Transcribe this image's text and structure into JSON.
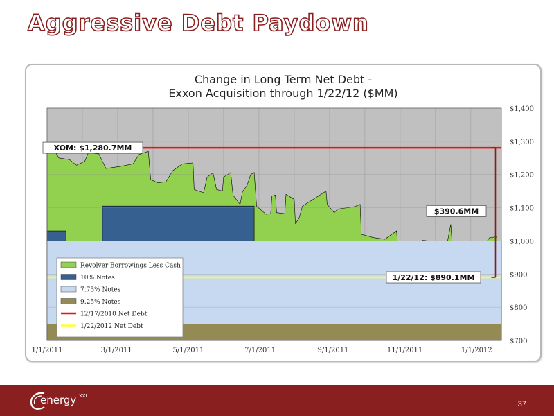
{
  "slide": {
    "title": "Aggressive Debt Paydown",
    "page_number": "37",
    "logo_text": "energy",
    "logo_superscript": "XXI"
  },
  "chart_data": {
    "type": "area",
    "title": [
      "Change in Long Term Net Debt -",
      "Exxon Acquisition through 1/22/12 ($MM)"
    ],
    "x_range": [
      "2011-01-01",
      "2012-01-22"
    ],
    "x_ticks": [
      {
        "date": "2011-01-01",
        "label": "1/1/2011"
      },
      {
        "date": "2011-03-01",
        "label": "3/1/2011"
      },
      {
        "date": "2011-05-01",
        "label": "5/1/2011"
      },
      {
        "date": "2011-07-01",
        "label": "7/1/2011"
      },
      {
        "date": "2011-09-01",
        "label": "9/1/2011"
      },
      {
        "date": "2011-11-01",
        "label": "11/1/2011"
      },
      {
        "date": "2012-01-01",
        "label": "1/1/2012"
      }
    ],
    "y_range": [
      700,
      1400
    ],
    "y_ticks": [
      {
        "value": 700,
        "label": "$700"
      },
      {
        "value": 800,
        "label": "$800"
      },
      {
        "value": 900,
        "label": "$900"
      },
      {
        "value": 1000,
        "label": "$1,000"
      },
      {
        "value": 1100,
        "label": "$1,100"
      },
      {
        "value": 1200,
        "label": "$1,200"
      },
      {
        "value": 1300,
        "label": "$1,300"
      },
      {
        "value": 1400,
        "label": "$1,400"
      }
    ],
    "grid": true,
    "legend_position": "bottom-left",
    "colors": {
      "plot_background": "#c0c0c0",
      "revolver": "#92d050",
      "notes_10": "#35608f",
      "notes_775": "#c6d9f1",
      "notes_925": "#948a54",
      "line_2010": "#ee1111",
      "line_2012": "#ffff33"
    },
    "series": [
      {
        "name": "9.25% Notes",
        "points": [
          [
            "2011-01-01",
            750
          ],
          [
            "2012-01-22",
            750
          ]
        ]
      },
      {
        "name": "7.75% Notes",
        "points": [
          [
            "2011-01-01",
            1000
          ],
          [
            "2012-01-22",
            1000
          ]
        ]
      },
      {
        "name": "10% Notes",
        "points": [
          [
            "2011-01-01",
            1030
          ],
          [
            "2011-01-17",
            1030
          ],
          [
            "2011-01-17",
            975
          ],
          [
            "2011-02-17",
            975
          ],
          [
            "2011-02-17",
            1105
          ],
          [
            "2011-06-26",
            1105
          ],
          [
            "2011-06-26",
            1000
          ],
          [
            "2012-01-22",
            1000
          ]
        ]
      },
      {
        "name": "Revolver Borrowings Less Cash",
        "points": [
          [
            "2011-01-01",
            1265
          ],
          [
            "2011-01-08",
            1268
          ],
          [
            "2011-01-11",
            1250
          ],
          [
            "2011-01-20",
            1245
          ],
          [
            "2011-01-26",
            1228
          ],
          [
            "2011-02-02",
            1240
          ],
          [
            "2011-02-05",
            1265
          ],
          [
            "2011-02-14",
            1262
          ],
          [
            "2011-02-20",
            1218
          ],
          [
            "2011-03-05",
            1225
          ],
          [
            "2011-03-15",
            1232
          ],
          [
            "2011-03-20",
            1260
          ],
          [
            "2011-03-28",
            1270
          ],
          [
            "2011-03-30",
            1185
          ],
          [
            "2011-04-05",
            1175
          ],
          [
            "2011-04-12",
            1178
          ],
          [
            "2011-04-18",
            1212
          ],
          [
            "2011-04-26",
            1232
          ],
          [
            "2011-05-05",
            1235
          ],
          [
            "2011-05-06",
            1155
          ],
          [
            "2011-05-14",
            1145
          ],
          [
            "2011-05-17",
            1192
          ],
          [
            "2011-05-22",
            1205
          ],
          [
            "2011-05-25",
            1155
          ],
          [
            "2011-05-30",
            1150
          ],
          [
            "2011-05-31",
            1192
          ],
          [
            "2011-06-06",
            1206
          ],
          [
            "2011-06-08",
            1138
          ],
          [
            "2011-06-14",
            1110
          ],
          [
            "2011-06-16",
            1148
          ],
          [
            "2011-06-20",
            1168
          ],
          [
            "2011-06-23",
            1200
          ],
          [
            "2011-06-26",
            1206
          ],
          [
            "2011-06-28",
            1105
          ],
          [
            "2011-07-06",
            1080
          ],
          [
            "2011-07-10",
            1082
          ],
          [
            "2011-07-11",
            1135
          ],
          [
            "2011-07-14",
            1138
          ],
          [
            "2011-07-15",
            1085
          ],
          [
            "2011-07-22",
            1082
          ],
          [
            "2011-07-23",
            1140
          ],
          [
            "2011-07-30",
            1125
          ],
          [
            "2011-07-31",
            1052
          ],
          [
            "2011-08-03",
            1068
          ],
          [
            "2011-08-06",
            1105
          ],
          [
            "2011-08-15",
            1125
          ],
          [
            "2011-08-26",
            1150
          ],
          [
            "2011-08-27",
            1110
          ],
          [
            "2011-09-02",
            1085
          ],
          [
            "2011-09-05",
            1096
          ],
          [
            "2011-09-19",
            1103
          ],
          [
            "2011-09-24",
            1110
          ],
          [
            "2011-09-25",
            1020
          ],
          [
            "2011-10-05",
            1010
          ],
          [
            "2011-10-15",
            1005
          ],
          [
            "2011-10-25",
            1030
          ],
          [
            "2011-10-26",
            980
          ],
          [
            "2011-10-29",
            950
          ],
          [
            "2011-11-04",
            958
          ],
          [
            "2011-11-07",
            975
          ],
          [
            "2011-11-12",
            990
          ],
          [
            "2011-11-16",
            1002
          ],
          [
            "2011-11-21",
            1000
          ],
          [
            "2011-11-22",
            915
          ],
          [
            "2011-11-27",
            918
          ],
          [
            "2011-12-04",
            932
          ],
          [
            "2011-12-06",
            975
          ],
          [
            "2011-12-10",
            1050
          ],
          [
            "2011-12-12",
            950
          ],
          [
            "2011-12-18",
            940
          ],
          [
            "2011-12-22",
            945
          ],
          [
            "2011-12-26",
            965
          ],
          [
            "2011-12-30",
            975
          ],
          [
            "2012-01-02",
            978
          ],
          [
            "2012-01-04",
            1000
          ],
          [
            "2012-01-10",
            1000
          ],
          [
            "2012-01-12",
            1010
          ],
          [
            "2012-01-18",
            1012
          ],
          [
            "2012-01-19",
            890
          ],
          [
            "2012-01-22",
            890
          ]
        ]
      },
      {
        "name": "12/17/2010 Net Debt",
        "points": [
          [
            "2011-01-01",
            1280.7
          ],
          [
            "2012-01-22",
            1280.7
          ]
        ]
      },
      {
        "name": "1/22/2012 Net Debt",
        "points": [
          [
            "2011-01-01",
            890.1
          ],
          [
            "2012-01-22",
            890.1
          ]
        ]
      }
    ],
    "legend_entries": [
      {
        "label": "Revolver Borrowings Less Cash",
        "color": "#92d050",
        "kind": "box"
      },
      {
        "label": "10% Notes",
        "color": "#35608f",
        "kind": "box"
      },
      {
        "label": "7.75% Notes",
        "color": "#c6d9f1",
        "kind": "box"
      },
      {
        "label": "9.25% Notes",
        "color": "#948a54",
        "kind": "box"
      },
      {
        "label": "12/17/2010 Net Debt",
        "color": "#ee1111",
        "kind": "line"
      },
      {
        "label": "1/22/2012 Net Debt",
        "color": "#ffff33",
        "kind": "line"
      }
    ],
    "annotations": [
      {
        "name": "xom-label",
        "text": "XOM: $1,280.7MM",
        "date": "2011-01-01",
        "value": 1280.7
      },
      {
        "name": "reduction-label",
        "text": "$390.6MM",
        "date": "2011-12-20",
        "value": 1090
      },
      {
        "name": "current-label",
        "text": "1/22/12: $890.1MM",
        "date": "2011-12-20",
        "value": 890.1
      }
    ],
    "reduction_bracket": {
      "date": "2012-01-17",
      "from": 1280.7,
      "to": 890.1
    }
  }
}
